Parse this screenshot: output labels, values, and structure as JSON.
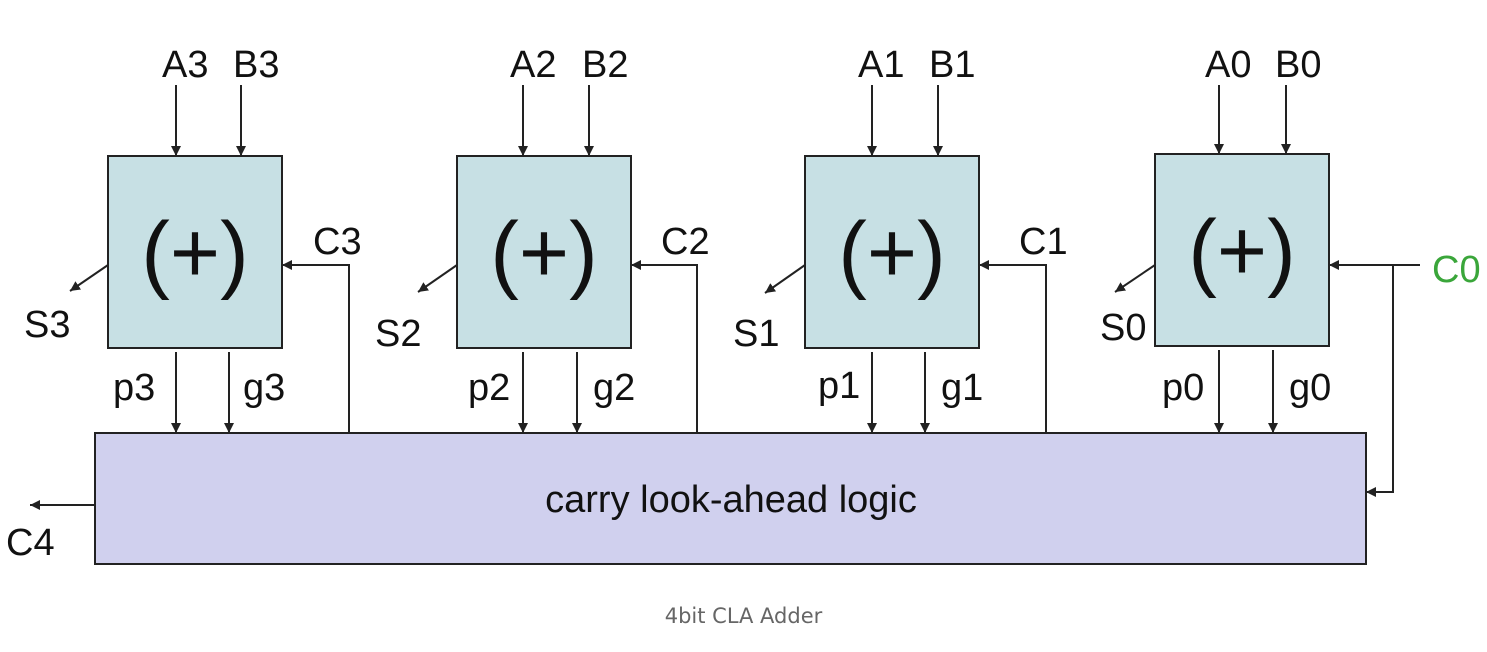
{
  "title": "4bit CLA Adder",
  "colors": {
    "adder_fill": "#c7e0e4",
    "cla_fill": "#d0d0ee",
    "stroke": "#222222",
    "c0_label": "#3aa63a"
  },
  "adders": [
    {
      "a": "A3",
      "b": "B3",
      "op": "(+)",
      "s": "S3",
      "p": "p3",
      "g": "g3",
      "c": "C3"
    },
    {
      "a": "A2",
      "b": "B2",
      "op": "(+)",
      "s": "S2",
      "p": "p2",
      "g": "g2",
      "c": "C2"
    },
    {
      "a": "A1",
      "b": "B1",
      "op": "(+)",
      "s": "S1",
      "p": "p1",
      "g": "g1",
      "c": "C1"
    },
    {
      "a": "A0",
      "b": "B0",
      "op": "(+)",
      "s": "S0",
      "p": "p0",
      "g": "g0",
      "c": "C0"
    }
  ],
  "cla": {
    "label": "carry look-ahead logic",
    "carry_out": "C4"
  }
}
